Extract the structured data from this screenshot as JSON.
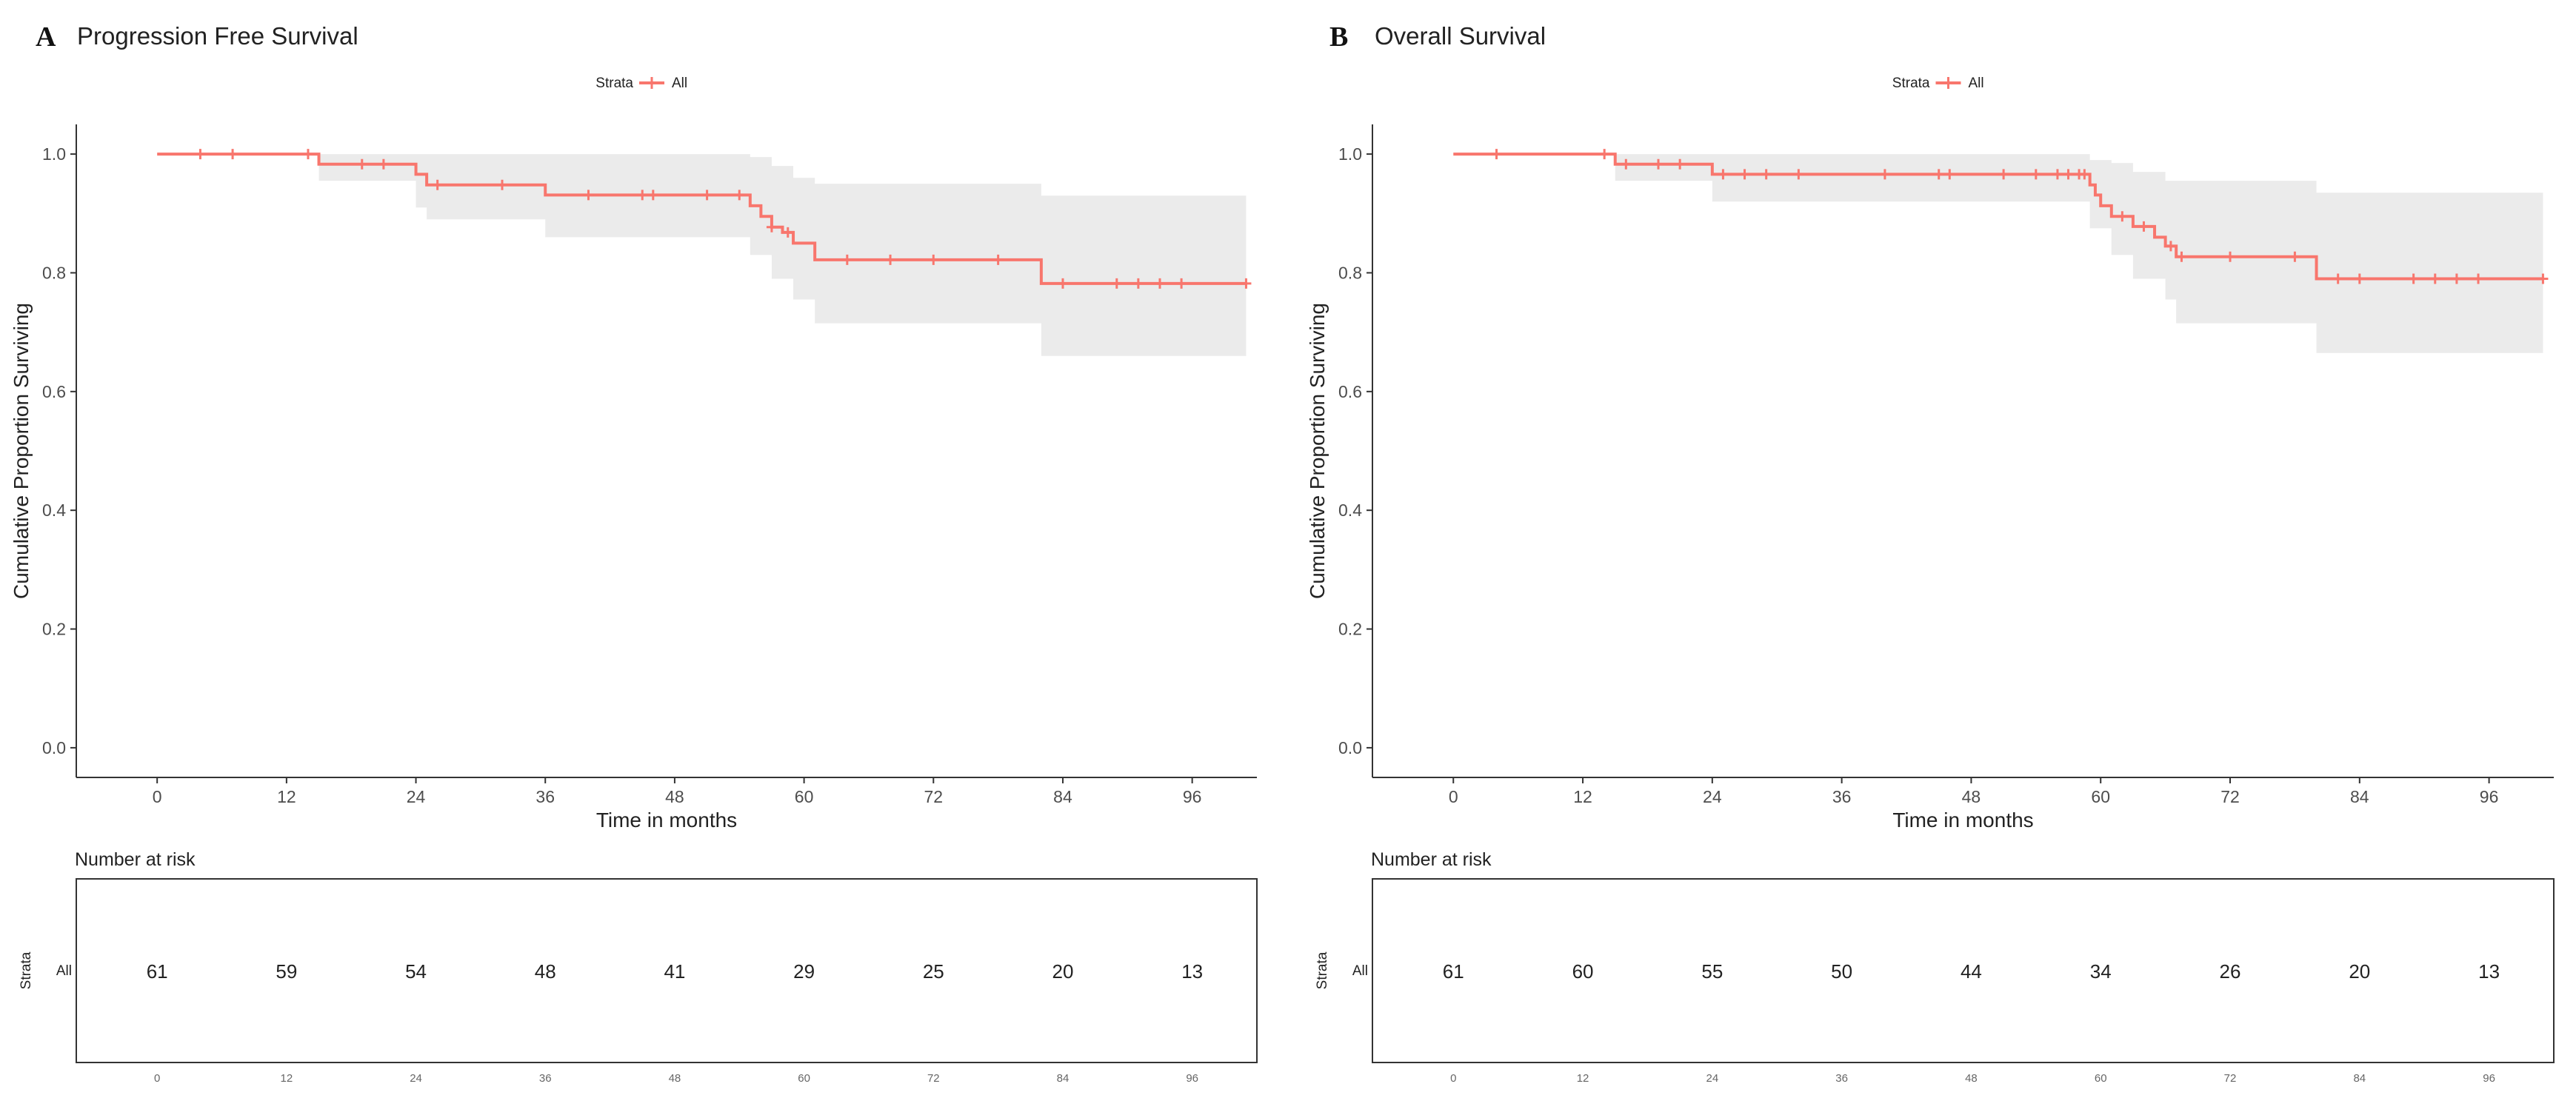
{
  "colors": {
    "curve": "#F8766D",
    "band": "#EBEBEB",
    "axis": "#333333",
    "risk_label": "#F8766D"
  },
  "chart_data": [
    {
      "type": "line",
      "panel_letter": "A",
      "title": "Progression Free Survival",
      "legend_title": "Strata",
      "legend_label": "All",
      "xlabel": "Time in months",
      "ylabel": "Cumulative Proportion Surviving",
      "xlim": [
        -7.5,
        102
      ],
      "ylim": [
        -0.05,
        1.05
      ],
      "xticks": [
        0,
        12,
        24,
        36,
        48,
        60,
        72,
        84,
        96
      ],
      "yticks": [
        "0.0",
        "0.2",
        "0.4",
        "0.6",
        "0.8",
        "1.0"
      ],
      "series": [
        {
          "name": "All",
          "steps": [
            [
              0,
              1.0
            ],
            [
              15,
              0.983
            ],
            [
              24,
              0.966
            ],
            [
              25,
              0.948
            ],
            [
              36,
              0.931
            ],
            [
              55,
              0.913
            ],
            [
              56,
              0.895
            ],
            [
              57,
              0.877
            ],
            [
              58,
              0.868
            ],
            [
              59,
              0.85
            ],
            [
              61,
              0.822
            ],
            [
              82,
              0.782
            ],
            [
              101,
              0.782
            ]
          ],
          "ci": [
            [
              0,
              1.0,
              1.0
            ],
            [
              15,
              0.955,
              1.0
            ],
            [
              24,
              0.91,
              1.0
            ],
            [
              25,
              0.89,
              1.0
            ],
            [
              36,
              0.86,
              1.0
            ],
            [
              55,
              0.83,
              0.995
            ],
            [
              57,
              0.79,
              0.98
            ],
            [
              59,
              0.755,
              0.96
            ],
            [
              61,
              0.715,
              0.95
            ],
            [
              82,
              0.66,
              0.93
            ],
            [
              101,
              0.66,
              0.93
            ]
          ],
          "censored": [
            [
              4,
              1.0
            ],
            [
              7,
              1.0
            ],
            [
              14,
              1.0
            ],
            [
              19,
              0.983
            ],
            [
              21,
              0.983
            ],
            [
              26,
              0.948
            ],
            [
              32,
              0.948
            ],
            [
              40,
              0.931
            ],
            [
              45,
              0.931
            ],
            [
              46,
              0.931
            ],
            [
              51,
              0.931
            ],
            [
              54,
              0.931
            ],
            [
              57,
              0.877
            ],
            [
              58.5,
              0.868
            ],
            [
              64,
              0.822
            ],
            [
              68,
              0.822
            ],
            [
              72,
              0.822
            ],
            [
              78,
              0.822
            ],
            [
              84,
              0.782
            ],
            [
              89,
              0.782
            ],
            [
              91,
              0.782
            ],
            [
              93,
              0.782
            ],
            [
              95,
              0.782
            ],
            [
              101,
              0.782
            ]
          ]
        }
      ],
      "risk_table": {
        "title": "Number at risk",
        "y_axis_label": "Strata",
        "strata_label": "All",
        "times": [
          0,
          12,
          24,
          36,
          48,
          60,
          72,
          84,
          96
        ],
        "values": [
          "61",
          "59",
          "54",
          "48",
          "41",
          "29",
          "25",
          "20",
          "13"
        ]
      }
    },
    {
      "type": "line",
      "panel_letter": "B",
      "title": "Overall Survival",
      "legend_title": "Strata",
      "legend_label": "All",
      "xlabel": "Time in months",
      "ylabel": "Cumulative Proportion Surviving",
      "xlim": [
        -7.5,
        102
      ],
      "ylim": [
        -0.05,
        1.05
      ],
      "xticks": [
        0,
        12,
        24,
        36,
        48,
        60,
        72,
        84,
        96
      ],
      "yticks": [
        "0.0",
        "0.2",
        "0.4",
        "0.6",
        "0.8",
        "1.0"
      ],
      "series": [
        {
          "name": "All",
          "steps": [
            [
              0,
              1.0
            ],
            [
              15,
              0.983
            ],
            [
              24,
              0.966
            ],
            [
              59,
              0.948
            ],
            [
              59.5,
              0.931
            ],
            [
              60,
              0.913
            ],
            [
              61,
              0.895
            ],
            [
              63,
              0.878
            ],
            [
              65,
              0.86
            ],
            [
              66,
              0.845
            ],
            [
              67,
              0.827
            ],
            [
              80,
              0.79
            ],
            [
              101,
              0.79
            ]
          ],
          "ci": [
            [
              0,
              1.0,
              1.0
            ],
            [
              15,
              0.955,
              1.0
            ],
            [
              24,
              0.92,
              1.0
            ],
            [
              59,
              0.875,
              0.99
            ],
            [
              61,
              0.83,
              0.985
            ],
            [
              63,
              0.79,
              0.97
            ],
            [
              66,
              0.755,
              0.955
            ],
            [
              67,
              0.715,
              0.955
            ],
            [
              80,
              0.665,
              0.935
            ],
            [
              101,
              0.665,
              0.935
            ]
          ],
          "censored": [
            [
              4,
              1.0
            ],
            [
              14,
              1.0
            ],
            [
              16,
              0.983
            ],
            [
              19,
              0.983
            ],
            [
              21,
              0.983
            ],
            [
              25,
              0.966
            ],
            [
              27,
              0.966
            ],
            [
              29,
              0.966
            ],
            [
              32,
              0.966
            ],
            [
              40,
              0.966
            ],
            [
              45,
              0.966
            ],
            [
              46,
              0.966
            ],
            [
              51,
              0.966
            ],
            [
              54,
              0.966
            ],
            [
              56,
              0.966
            ],
            [
              57,
              0.966
            ],
            [
              58,
              0.966
            ],
            [
              58.5,
              0.966
            ],
            [
              62,
              0.895
            ],
            [
              64,
              0.878
            ],
            [
              66.5,
              0.845
            ],
            [
              67.5,
              0.827
            ],
            [
              72,
              0.827
            ],
            [
              78,
              0.827
            ],
            [
              82,
              0.79
            ],
            [
              84,
              0.79
            ],
            [
              89,
              0.79
            ],
            [
              91,
              0.79
            ],
            [
              93,
              0.79
            ],
            [
              95,
              0.79
            ],
            [
              101,
              0.79
            ]
          ]
        }
      ],
      "risk_table": {
        "title": "Number at risk",
        "y_axis_label": "Strata",
        "strata_label": "All",
        "times": [
          0,
          12,
          24,
          36,
          48,
          60,
          72,
          84,
          96
        ],
        "values": [
          "61",
          "60",
          "55",
          "50",
          "44",
          "34",
          "26",
          "20",
          "13"
        ]
      }
    }
  ]
}
